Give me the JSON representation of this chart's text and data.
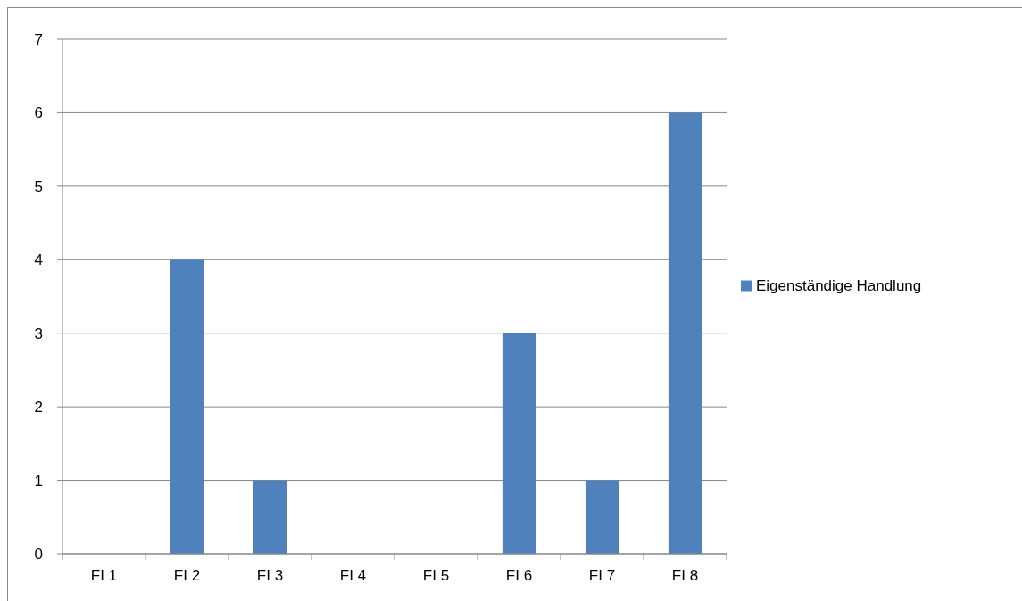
{
  "chart_data": {
    "type": "bar",
    "categories": [
      "FI 1",
      "FI 2",
      "FI 3",
      "FI 4",
      "FI 5",
      "FI 6",
      "FI 7",
      "FI 8"
    ],
    "series": [
      {
        "name": "Eigenständige Handlung",
        "color": "#4f81bd",
        "values": [
          0,
          4,
          1,
          0,
          0,
          3,
          1,
          6
        ]
      }
    ],
    "ylim": [
      0,
      7
    ],
    "yticks": [
      0,
      1,
      2,
      3,
      4,
      5,
      6,
      7
    ],
    "grid": "y",
    "legend": "right"
  }
}
